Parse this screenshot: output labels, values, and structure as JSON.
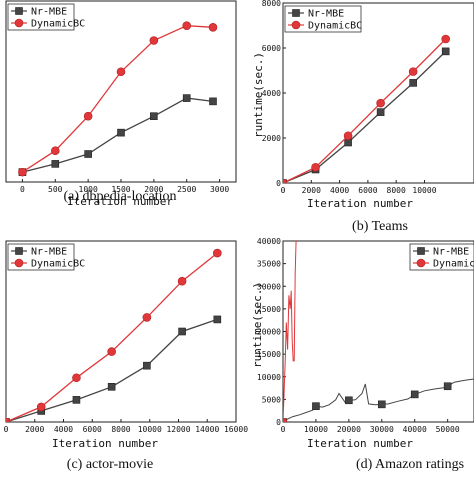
{
  "chart_data": [
    {
      "type": "line",
      "caption": "(a) dbpedia-location",
      "xlabel": "Iteration number",
      "ylabel": "",
      "xlim": [
        -250,
        3250
      ],
      "ylim": [
        -0.3,
        5.2
      ],
      "xticks": [
        "0",
        "500",
        "1000",
        "1500",
        "2000",
        "2500",
        "3000"
      ],
      "yticks": [],
      "grid": false,
      "legend": {
        "position": "top-left",
        "entries": [
          "Nr-MBE",
          "DynamicBC"
        ]
      },
      "series": [
        {
          "name": "Nr-MBE",
          "color": "#444444",
          "marker": "square",
          "x": [
            0,
            500,
            1000,
            1500,
            2000,
            2500,
            2900
          ],
          "y": [
            0.0,
            0.25,
            0.55,
            1.2,
            1.7,
            2.25,
            2.15
          ]
        },
        {
          "name": "DynamicBC",
          "color": "#e0383a",
          "marker": "circle",
          "x": [
            0,
            500,
            1000,
            1500,
            2000,
            2500,
            2900
          ],
          "y": [
            0.0,
            0.65,
            1.7,
            3.05,
            4.0,
            4.45,
            4.4
          ]
        }
      ]
    },
    {
      "type": "line",
      "caption": "(b) Teams",
      "xlabel": "Iteration number",
      "ylabel": "runtime(sec.)",
      "xlim": [
        0,
        13500
      ],
      "ylim": [
        0,
        8000
      ],
      "xticks": [
        "0",
        "2000",
        "4000",
        "6000",
        "8000",
        "10000"
      ],
      "yticks": [
        "0",
        "2000",
        "4000",
        "6000",
        "8000"
      ],
      "grid": false,
      "legend": {
        "position": "top-right",
        "entries": [
          "Nr-MBE",
          "DynamicBC"
        ]
      },
      "series": [
        {
          "name": "Nr-MBE",
          "color": "#444444",
          "marker": "square",
          "x": [
            0,
            2300,
            4600,
            6900,
            9200,
            11500
          ],
          "y": [
            0,
            600,
            1800,
            3150,
            4450,
            5850
          ]
        },
        {
          "name": "DynamicBC",
          "color": "#e0383a",
          "marker": "circle",
          "x": [
            0,
            2300,
            4600,
            6900,
            9200,
            11500
          ],
          "y": [
            0,
            700,
            2100,
            3550,
            4950,
            6400
          ]
        }
      ]
    },
    {
      "type": "line",
      "caption": "(c) actor-movie",
      "xlabel": "Iteration number",
      "ylabel": "",
      "xlim": [
        0,
        16000
      ],
      "ylim": [
        0,
        9
      ],
      "xticks": [
        "0",
        "2000",
        "4000",
        "6000",
        "8000",
        "10000",
        "12000",
        "14000",
        "16000"
      ],
      "yticks": [],
      "grid": false,
      "legend": {
        "position": "top-left",
        "entries": [
          "Nr-MBE",
          "DynamicBC"
        ]
      },
      "series": [
        {
          "name": "Nr-MBE",
          "color": "#444444",
          "marker": "square",
          "x": [
            0,
            2450,
            4900,
            7350,
            9800,
            12250,
            14700
          ],
          "y": [
            0.0,
            0.55,
            1.1,
            1.75,
            2.8,
            4.5,
            5.1
          ]
        },
        {
          "name": "DynamicBC",
          "color": "#e0383a",
          "marker": "circle",
          "x": [
            0,
            2450,
            4900,
            7350,
            9800,
            12250,
            14700
          ],
          "y": [
            0.0,
            0.75,
            2.2,
            3.5,
            5.2,
            7.0,
            8.4
          ]
        }
      ]
    },
    {
      "type": "line",
      "caption": "(d) Amazon ratings",
      "xlabel": "Iteration number",
      "ylabel": "runtime(sec.)",
      "xlim": [
        0,
        58000
      ],
      "ylim": [
        0,
        40000
      ],
      "xticks": [
        "0",
        "10000",
        "20000",
        "30000",
        "40000",
        "50000"
      ],
      "yticks": [
        "0",
        "5000",
        "10000",
        "15000",
        "20000",
        "25000",
        "30000",
        "35000",
        "40000"
      ],
      "grid": false,
      "legend": {
        "position": "top-right",
        "entries": [
          "Nr-MBE",
          "DynamicBC"
        ]
      },
      "series": [
        {
          "name": "Nr-MBE",
          "color": "#444444",
          "marker": "square",
          "x": [
            0,
            1500,
            3000,
            5000,
            7000,
            9000,
            10000,
            12000,
            14000,
            16000,
            17000,
            19000,
            20000,
            22000,
            24000,
            25000,
            26000,
            28000,
            30000,
            32000,
            35000,
            38000,
            40000,
            43000,
            46000,
            49000,
            50000,
            52000,
            55000,
            58000
          ],
          "y": [
            0,
            700,
            1200,
            1600,
            2100,
            2600,
            3500,
            3300,
            3800,
            4900,
            6300,
            4200,
            4800,
            4900,
            6300,
            8400,
            4000,
            3800,
            3900,
            4000,
            4600,
            5100,
            6100,
            6900,
            7300,
            7600,
            7900,
            8800,
            9200,
            9500
          ],
          "markers_at": [
            0,
            10000,
            20000,
            30000,
            40000,
            50000
          ]
        },
        {
          "name": "DynamicBC",
          "color": "#e0383a",
          "marker": "circle",
          "x": [
            0,
            300,
            700,
            1000,
            1400,
            1800,
            2200,
            2500,
            2800,
            3100,
            3400,
            3700,
            4000,
            4300
          ],
          "y": [
            0,
            6000,
            14000,
            22000,
            16000,
            28000,
            25000,
            29000,
            18000,
            13500,
            13500,
            33000,
            41000,
            43000
          ],
          "markers_at": [
            0
          ]
        }
      ]
    }
  ]
}
